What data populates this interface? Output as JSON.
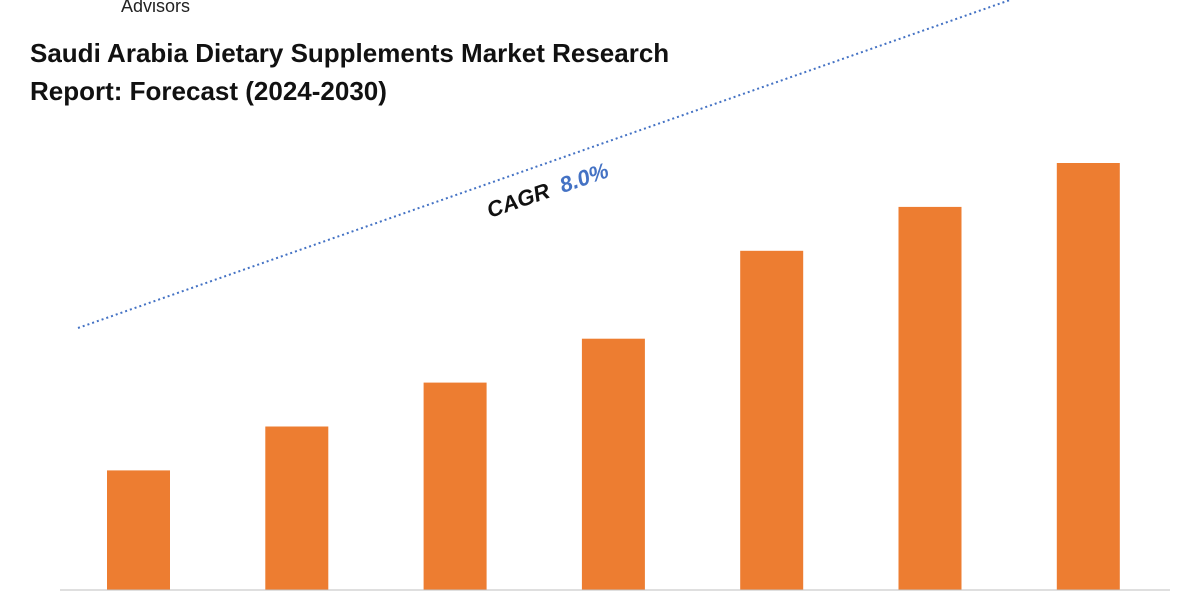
{
  "brand": {
    "text": "Advisors"
  },
  "header": {
    "title_line1": "Saudi Arabia Dietary Supplements Market Research",
    "title_line2": "Report: Forecast (2024-2030)"
  },
  "cagr": {
    "label": "CAGR",
    "value": "8.0%"
  },
  "colors": {
    "bar": "#ED7D31",
    "trend": "#4472C4",
    "cagr_value": "#4472C4",
    "text": "#111111",
    "axis": "#BFBFBF"
  },
  "chart_data": {
    "type": "bar",
    "categories": [
      "",
      "",
      "",
      "",
      "",
      "",
      ""
    ],
    "values": [
      49,
      67,
      85,
      103,
      139,
      157,
      175
    ],
    "ylim": [
      0,
      200
    ],
    "grid": false,
    "legend": "none"
  }
}
